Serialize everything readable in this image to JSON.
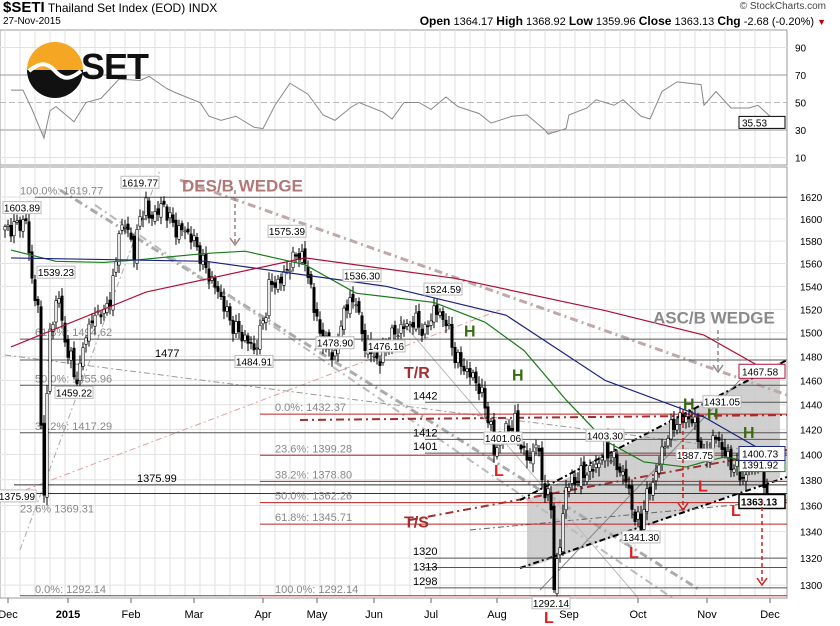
{
  "header": {
    "symbol": "$SETI",
    "name": "Thailand Set Index (EOD)",
    "exchange": "INDX",
    "date": "27-Nov-2015",
    "copyright": "© StockCharts.com",
    "open_label": "Open",
    "open": "1364.17",
    "high_label": "High",
    "high": "1368.92",
    "low_label": "Low",
    "low": "1359.96",
    "close_label": "Close",
    "close": "1363.13",
    "chg_label": "Chg",
    "chg": "-2.68 (-0.20%)",
    "chg_color": "#c00000"
  },
  "logo_text": "SET",
  "chart_data": [
    {
      "type": "line",
      "name": "RSI",
      "yticks": [
        90,
        70,
        50,
        30,
        10
      ],
      "ylim": [
        0,
        100
      ],
      "last": "35.53",
      "points": [
        [
          2,
          59
        ],
        [
          6,
          59
        ],
        [
          9,
          45
        ],
        [
          13,
          24
        ],
        [
          15,
          44
        ],
        [
          17,
          47
        ],
        [
          23,
          36
        ],
        [
          27,
          50
        ],
        [
          32,
          53
        ],
        [
          38,
          67
        ],
        [
          45,
          66
        ],
        [
          48,
          69
        ],
        [
          54,
          60
        ],
        [
          57,
          57
        ],
        [
          65,
          50
        ],
        [
          68,
          40
        ],
        [
          72,
          37
        ],
        [
          77,
          40
        ],
        [
          83,
          32
        ],
        [
          86,
          31
        ],
        [
          90,
          48
        ],
        [
          95,
          64
        ],
        [
          101,
          56
        ],
        [
          106,
          41
        ],
        [
          110,
          37
        ],
        [
          115,
          46
        ],
        [
          118,
          50
        ],
        [
          126,
          43
        ],
        [
          129,
          38
        ],
        [
          133,
          50
        ],
        [
          138,
          50
        ],
        [
          142,
          45
        ],
        [
          147,
          54
        ],
        [
          151,
          47
        ],
        [
          158,
          42
        ],
        [
          162,
          35
        ],
        [
          169,
          40
        ],
        [
          174,
          41
        ],
        [
          180,
          30
        ],
        [
          181,
          27
        ],
        [
          187,
          31
        ],
        [
          188,
          41
        ],
        [
          194,
          46
        ],
        [
          197,
          52
        ],
        [
          203,
          48
        ],
        [
          206,
          52
        ],
        [
          212,
          40
        ],
        [
          215,
          38
        ],
        [
          219,
          58
        ],
        [
          224,
          65
        ],
        [
          232,
          63
        ],
        [
          233,
          48
        ],
        [
          237,
          58
        ],
        [
          242,
          46
        ],
        [
          248,
          46
        ],
        [
          251,
          48
        ],
        [
          255,
          40
        ],
        [
          257,
          35.5
        ]
      ]
    },
    {
      "type": "candlestick",
      "name": "Thailand Set Index",
      "ylim": [
        1290,
        1630
      ],
      "scale": "log",
      "yticks": [
        1620,
        1600,
        1580,
        1560,
        1540,
        1520,
        1500,
        1480,
        1460,
        1440,
        1420,
        1400,
        1380,
        1360,
        1340,
        1320,
        1300
      ],
      "xticks": [
        "Dec",
        "2015",
        "Feb",
        "Mar",
        "Apr",
        "May",
        "Jun",
        "Jul",
        "Aug",
        "Sep",
        "Oct",
        "Nov",
        "Dec"
      ],
      "xtick_days": [
        1,
        21,
        42,
        63,
        86,
        104,
        123,
        142,
        164,
        188,
        211,
        234,
        255
      ],
      "closes": [
        [
          0,
          1590
        ],
        [
          7,
          1598
        ],
        [
          8,
          1570
        ],
        [
          9,
          1545
        ],
        [
          11,
          1520
        ],
        [
          12,
          1420
        ],
        [
          13,
          1376
        ],
        [
          14,
          1445
        ],
        [
          15,
          1500
        ],
        [
          17,
          1525
        ],
        [
          18,
          1530
        ],
        [
          20,
          1490
        ],
        [
          22,
          1480
        ],
        [
          23,
          1460
        ],
        [
          25,
          1470
        ],
        [
          27,
          1500
        ],
        [
          29,
          1510
        ],
        [
          32,
          1520
        ],
        [
          33,
          1515
        ],
        [
          35,
          1530
        ],
        [
          37,
          1560
        ],
        [
          38,
          1590
        ],
        [
          40,
          1595
        ],
        [
          42,
          1580
        ],
        [
          43,
          1570
        ],
        [
          45,
          1600
        ],
        [
          47,
          1615
        ],
        [
          48,
          1600
        ],
        [
          50,
          1605
        ],
        [
          52,
          1610
        ],
        [
          53,
          1612
        ],
        [
          55,
          1600
        ],
        [
          57,
          1590
        ],
        [
          60,
          1590
        ],
        [
          63,
          1580
        ],
        [
          67,
          1555
        ],
        [
          70,
          1540
        ],
        [
          72,
          1530
        ],
        [
          75,
          1510
        ],
        [
          78,
          1500
        ],
        [
          82,
          1490
        ],
        [
          83,
          1485
        ],
        [
          85,
          1500
        ],
        [
          87,
          1520
        ],
        [
          88,
          1540
        ],
        [
          92,
          1545
        ],
        [
          95,
          1560
        ],
        [
          98,
          1570
        ],
        [
          100,
          1560
        ],
        [
          102,
          1540
        ],
        [
          103,
          1520
        ],
        [
          105,
          1500
        ],
        [
          107,
          1490
        ],
        [
          110,
          1480
        ],
        [
          113,
          1520
        ],
        [
          117,
          1530
        ],
        [
          118,
          1510
        ],
        [
          120,
          1490
        ],
        [
          123,
          1480
        ],
        [
          125,
          1476
        ],
        [
          127,
          1490
        ],
        [
          130,
          1500
        ],
        [
          133,
          1505
        ],
        [
          137,
          1510
        ],
        [
          140,
          1500
        ],
        [
          143,
          1520
        ],
        [
          147,
          1510
        ],
        [
          150,
          1480
        ],
        [
          153,
          1470
        ],
        [
          157,
          1460
        ],
        [
          160,
          1440
        ],
        [
          162,
          1420
        ],
        [
          163,
          1402
        ],
        [
          167,
          1420
        ],
        [
          170,
          1425
        ],
        [
          173,
          1400
        ],
        [
          175,
          1395
        ],
        [
          177,
          1410
        ],
        [
          180,
          1370
        ],
        [
          182,
          1360
        ],
        [
          183,
          1300
        ],
        [
          185,
          1330
        ],
        [
          187,
          1375
        ],
        [
          190,
          1380
        ],
        [
          193,
          1385
        ],
        [
          197,
          1390
        ],
        [
          200,
          1405
        ],
        [
          203,
          1395
        ],
        [
          207,
          1380
        ],
        [
          210,
          1350
        ],
        [
          212,
          1345
        ],
        [
          213,
          1360
        ],
        [
          217,
          1385
        ],
        [
          220,
          1410
        ],
        [
          223,
          1425
        ],
        [
          227,
          1430
        ],
        [
          230,
          1425
        ],
        [
          233,
          1395
        ],
        [
          237,
          1415
        ],
        [
          240,
          1400
        ],
        [
          243,
          1390
        ],
        [
          247,
          1380
        ],
        [
          248,
          1395
        ],
        [
          252,
          1390
        ],
        [
          253,
          1380
        ],
        [
          254,
          1363.13
        ]
      ],
      "ma": [
        {
          "name": "MA50",
          "color": "#1a7a1a",
          "last": "1391.92",
          "points": [
            [
              2,
              1572
            ],
            [
              17,
              1562
            ],
            [
              33,
              1561
            ],
            [
              43,
              1563
            ],
            [
              67,
              1569
            ],
            [
              80,
              1571
            ],
            [
              100,
              1559
            ],
            [
              117,
              1534
            ],
            [
              143,
              1526
            ],
            [
              160,
              1509
            ],
            [
              173,
              1485
            ],
            [
              187,
              1444
            ],
            [
              200,
              1411
            ],
            [
              213,
              1394
            ],
            [
              227,
              1390
            ],
            [
              233,
              1394
            ],
            [
              240,
              1398
            ],
            [
              254,
              1392
            ]
          ]
        },
        {
          "name": "MA100",
          "color": "#1a237e",
          "last": "1400.73",
          "points": [
            [
              2,
              1565
            ],
            [
              67,
              1562
            ],
            [
              127,
              1540
            ],
            [
              167,
              1515
            ],
            [
              200,
              1460
            ],
            [
              233,
              1430
            ],
            [
              254,
              1401
            ]
          ]
        },
        {
          "name": "MA200",
          "color": "#b0103a",
          "last": "1467.58",
          "points": [
            [
              2,
              1488
            ],
            [
              47,
              1535
            ],
            [
              100,
              1565
            ],
            [
              150,
              1547
            ],
            [
              200,
              1519
            ],
            [
              233,
              1498
            ],
            [
              254,
              1468
            ]
          ]
        }
      ],
      "levels": [
        {
          "price": 1619.77,
          "from": 10,
          "to": 262,
          "color": "#555",
          "label": "100.0%: 1619.77",
          "lc": "#888"
        },
        {
          "price": 1494.62,
          "from": 5,
          "to": 262,
          "color": "#555",
          "label": "61.8%: 1494.62",
          "lc": "#888"
        },
        {
          "price": 1477,
          "from": 5,
          "to": 262,
          "color": "#555",
          "label": "1477",
          "lc": "#000",
          "lx": 50
        },
        {
          "price": 1455.96,
          "from": 5,
          "to": 262,
          "color": "#555",
          "label": "50.0%: 1455.96",
          "lc": "#888"
        },
        {
          "price": 1442,
          "from": 140,
          "to": 262,
          "color": "#555",
          "label": "1442",
          "lc": "#000",
          "lx": 136
        },
        {
          "price": 1432.37,
          "from": 85,
          "to": 262,
          "color": "#c02020",
          "label": "0.0%: 1432.37",
          "lc": "#888"
        },
        {
          "price": 1417.29,
          "from": 5,
          "to": 262,
          "color": "#555",
          "label": "38.2%: 1417.29",
          "lc": "#888"
        },
        {
          "price": 1412,
          "from": 140,
          "to": 262,
          "color": "#555",
          "label": "1412",
          "lc": "#000",
          "lx": 136
        },
        {
          "price": 1401,
          "from": 140,
          "to": 262,
          "color": "#555",
          "label": "1401",
          "lc": "#000",
          "lx": 136
        },
        {
          "price": 1399.28,
          "from": 85,
          "to": 262,
          "color": "#c02020",
          "label": "23.6%: 1399.28",
          "lc": "#888"
        },
        {
          "price": 1378.8,
          "from": 85,
          "to": 262,
          "color": "#c02020",
          "label": "38.2%: 1378.80",
          "lc": "#888"
        },
        {
          "price": 1375.99,
          "from": 3,
          "to": 262,
          "color": "#333",
          "label": "1375.99",
          "lc": "#000",
          "lx": 44
        },
        {
          "price": 1369.31,
          "from": 3,
          "to": 262,
          "color": "#333",
          "label": "23.6%  1369.31",
          "lc": "#888"
        },
        {
          "price": 1362.26,
          "from": 85,
          "to": 262,
          "color": "#c02020",
          "label": "50.0%: 1362.26",
          "lc": "#888"
        },
        {
          "price": 1345.71,
          "from": 85,
          "to": 262,
          "color": "#c02020",
          "label": "61.8%: 1345.71",
          "lc": "#888"
        },
        {
          "price": 1320,
          "from": 140,
          "to": 262,
          "color": "#555",
          "label": "1320",
          "lc": "#000",
          "lx": 136
        },
        {
          "price": 1313,
          "from": 140,
          "to": 262,
          "color": "#555",
          "label": "1313",
          "lc": "#000",
          "lx": 136
        },
        {
          "price": 1298,
          "from": 140,
          "to": 262,
          "color": "#555",
          "label": "1298",
          "lc": "#000",
          "lx": 136
        },
        {
          "price": 1292.14,
          "from": 5,
          "to": 85,
          "color": "#555",
          "label": "0.0%: 1292.14",
          "lc": "#888"
        },
        {
          "price": 1292.14,
          "from": 85,
          "to": 262,
          "color": "#c02020",
          "label": "100.0%: 1292.14",
          "lc": "#888"
        }
      ],
      "callouts": [
        [
          2,
          1603.89,
          "1603.89"
        ],
        [
          45,
          1619.77,
          "1619.77"
        ],
        [
          17,
          1539.23,
          "1539.23"
        ],
        [
          23,
          1459.22,
          "1459.22"
        ],
        [
          83,
          1484.91,
          "1484.91"
        ],
        [
          94,
          1575.39,
          "1575.39"
        ],
        [
          119,
          1536.3,
          "1536.30"
        ],
        [
          146,
          1524.59,
          "1524.59"
        ],
        [
          110,
          1478.9,
          "1478.90"
        ],
        [
          127,
          1476.16,
          "1476.16"
        ],
        [
          166,
          1401.06,
          "1401.06"
        ],
        [
          200,
          1403.3,
          "1403.30"
        ],
        [
          182,
          1292.14,
          "1292.14"
        ],
        [
          212,
          1341.3,
          "1341.30"
        ],
        [
          230,
          1387.75,
          "1387.75"
        ],
        [
          235,
          1431.05,
          "1431.05"
        ],
        [
          4,
          1375.99,
          "1375.99"
        ]
      ],
      "annotations": [
        {
          "text": "DES/B WEDGE",
          "day": 59,
          "price": 1625,
          "color": "#b07878",
          "size": 17
        },
        {
          "text": "ASC/B WEDGE",
          "day": 216,
          "price": 1508,
          "color": "#8a8a8a",
          "size": 17
        },
        {
          "text": "T/R",
          "day": 133,
          "price": 1462,
          "color": "#a03030",
          "size": 16
        },
        {
          "text": "T/S",
          "day": 133,
          "price": 1343,
          "color": "#a03030",
          "size": 16
        },
        {
          "text": "H",
          "day": 153,
          "price": 1497,
          "color": "#3a6a10",
          "size": 16
        },
        {
          "text": "H",
          "day": 169,
          "price": 1460,
          "color": "#3a6a10",
          "size": 16
        },
        {
          "text": "H",
          "day": 226,
          "price": 1436,
          "color": "#3a6a10",
          "size": 16
        },
        {
          "text": "H",
          "day": 234,
          "price": 1428,
          "color": "#3a6a10",
          "size": 16
        },
        {
          "text": "H",
          "day": 246,
          "price": 1413,
          "color": "#3a6a10",
          "size": 16
        },
        {
          "text": "L",
          "day": 163,
          "price": 1383,
          "color": "#e02020",
          "size": 16
        },
        {
          "text": "L",
          "day": 231,
          "price": 1371,
          "color": "#e02020",
          "size": 16
        },
        {
          "text": "L",
          "day": 208,
          "price": 1320,
          "color": "#e02020",
          "size": 16
        },
        {
          "text": "L",
          "day": 242,
          "price": 1352,
          "color": "#e02020",
          "size": 16
        },
        {
          "text": "L",
          "day": 181,
          "price": 1281,
          "color": "#e02020",
          "size": 16
        }
      ]
    }
  ]
}
